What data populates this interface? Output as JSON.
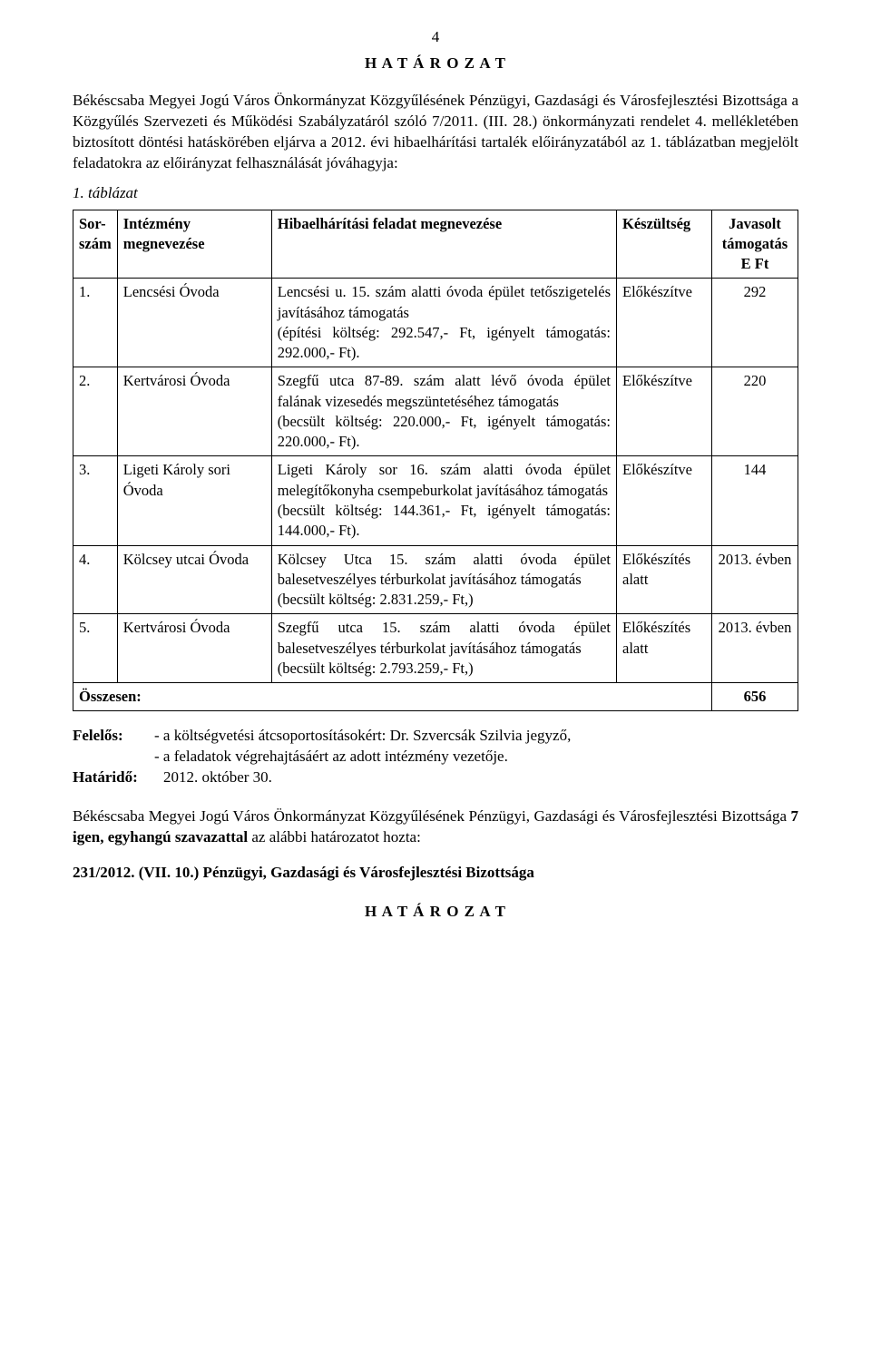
{
  "page_number": "4",
  "title": "H A T Á R O Z A T",
  "intro": "Békéscsaba Megyei Jogú Város Önkormányzat Közgyűlésének Pénzügyi, Gazdasági és Városfejlesztési Bizottsága a Közgyűlés Szervezeti és Működési Szabályzatáról szóló 7/2011. (III. 28.) önkormányzati rendelet 4. mellékletében biztosított döntési hatáskörében eljárva a 2012. évi hibaelhárítási tartalék előirányzatából az 1. táblázatban megjelölt feladatokra az előirányzat felhasználását jóváhagyja:",
  "table_caption": "1. táblázat",
  "table": {
    "headers": {
      "num": "Sor-szám",
      "inst": "Intézmény megnevezése",
      "task": "Hibaelhárítási feladat megnevezése",
      "ready": "Készültség",
      "amount": "Javasolt támogatás E Ft"
    },
    "rows": [
      {
        "num": "1.",
        "inst": "Lencsési Óvoda",
        "task": "Lencsési u. 15. szám alatti óvoda épület tetőszigetelés javításához támogatás\n(építési költség: 292.547,- Ft, igényelt támogatás: 292.000,- Ft).",
        "ready": "Előkészítve",
        "amount": "292"
      },
      {
        "num": "2.",
        "inst": "Kertvárosi Óvoda",
        "task": "Szegfű utca 87-89. szám alatt lévő óvoda épület falának vizesedés megszüntetéséhez támogatás\n(becsült költség: 220.000,- Ft, igényelt támogatás: 220.000,- Ft).",
        "ready": "Előkészítve",
        "amount": "220"
      },
      {
        "num": "3.",
        "inst": "Ligeti Károly sori Óvoda",
        "task": "Ligeti Károly sor 16. szám alatti óvoda épület melegítőkonyha csempeburkolat javításához támogatás\n(becsült költség: 144.361,- Ft, igényelt támogatás: 144.000,- Ft).",
        "ready": "Előkészítve",
        "amount": "144"
      },
      {
        "num": "4.",
        "inst": "Kölcsey utcai Óvoda",
        "task": "Kölcsey Utca 15. szám alatti óvoda épület balesetveszélyes térburkolat javításához támogatás\n(becsült költség: 2.831.259,- Ft,)",
        "ready": "Előkészítés alatt",
        "amount": "2013. évben"
      },
      {
        "num": "5.",
        "inst": "Kertvárosi Óvoda",
        "task": "Szegfű utca 15. szám alatti óvoda épület balesetveszélyes térburkolat javításához támogatás\n(becsült költség: 2.793.259,- Ft,)",
        "ready": "Előkészítés alatt",
        "amount": "2013. évben"
      }
    ],
    "total_label": "Összesen:",
    "total_value": "656"
  },
  "felelos_label": "Felelős:",
  "felelos_line1": "- a költségvetési átcsoportosításokért: Dr. Szvercsák Szilvia jegyző,",
  "felelos_line2": "- a feladatok végrehajtásáért az adott intézmény vezetője.",
  "hatarido_label": "Határidő:",
  "hatarido_value": "2012. október 30.",
  "vote_para": "Békéscsaba Megyei Jogú Város Önkormányzat Közgyűlésének Pénzügyi, Gazdasági és Városfejlesztési Bizottsága 7 igen, egyhangú szavazattal az alábbi határozatot hozta:",
  "vote_bold_phrase": "7 igen, egyhangú szavazattal",
  "resolution_number": "231/2012. (VII. 10.) Pénzügyi, Gazdasági és Városfejlesztési Bizottsága",
  "footer_title": "H A T Á R O Z A T"
}
